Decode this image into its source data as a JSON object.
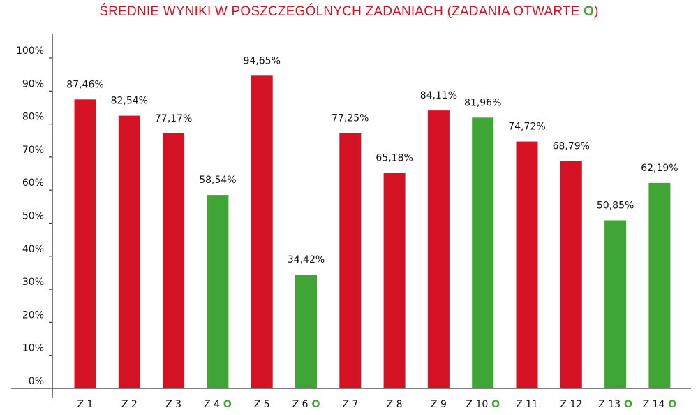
{
  "chart_data": {
    "type": "bar",
    "title": "ŚREDNIE WYNIKI W POSZCZEGÓLNYCH ZADANIACH (ZADANIA OTWARTE",
    "title_marker": "O",
    "title_end": ")",
    "open_marker": "O",
    "categories": [
      "Z 1",
      "Z 2",
      "Z 3",
      "Z 4",
      "Z 5",
      "Z 6",
      "Z 7",
      "Z 8",
      "Z 9",
      "Z 10",
      "Z 11",
      "Z 12",
      "Z 13",
      "Z 14"
    ],
    "values": [
      87.46,
      82.54,
      77.17,
      58.54,
      94.65,
      34.42,
      77.25,
      65.18,
      84.11,
      81.96,
      74.72,
      68.79,
      50.85,
      62.19
    ],
    "data_labels": [
      "87,46%",
      "82,54%",
      "77,17%",
      "58,54%",
      "94,65%",
      "34,42%",
      "77,25%",
      "65,18%",
      "84,11%",
      "81,96%",
      "74,72%",
      "68,79%",
      "50,85%",
      "62,19%"
    ],
    "open_task": [
      false,
      false,
      false,
      true,
      false,
      true,
      false,
      false,
      false,
      true,
      false,
      false,
      true,
      true
    ],
    "yticks": [
      "0%",
      "10%",
      "20%",
      "30%",
      "40%",
      "50%",
      "60%",
      "70%",
      "80%",
      "90%",
      "100%"
    ],
    "ylim": [
      0,
      100
    ],
    "grid": false,
    "colors": {
      "closed": "#d51224",
      "open": "#3fa535",
      "title": "#d51224"
    }
  }
}
